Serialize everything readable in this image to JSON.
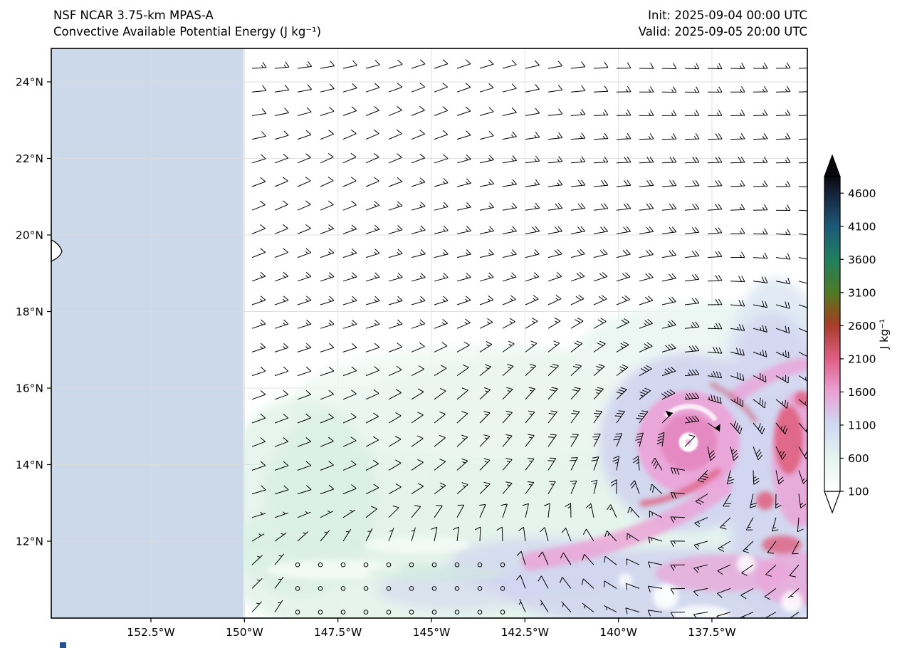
{
  "header": {
    "title_line1": "NSF NCAR 3.75-km MPAS-A",
    "title_line2": "Convective Available Potential Energy (J kg⁻¹)",
    "init_label": "Init: 2025-09-04 00:00 UTC",
    "valid_label": "Valid: 2025-09-05 20:00 UTC"
  },
  "chart_data": {
    "type": "heatmap",
    "title": "Convective Available Potential Energy (J kg⁻¹)",
    "subtitle": "NSF NCAR 3.75-km MPAS-A",
    "init_time": "2025-09-04 00:00 UTC",
    "valid_time": "2025-09-05 20:00 UTC",
    "projection": "lon-lat map of the central/eastern North Pacific",
    "x_axis": {
      "labels": [
        "152.5°W",
        "150°W",
        "147.5°W",
        "145°W",
        "142.5°W",
        "140°W",
        "137.5°W"
      ],
      "lons_w": [
        152.5,
        150,
        147.5,
        145,
        142.5,
        140,
        137.5
      ]
    },
    "y_axis": {
      "labels": [
        "24°N",
        "22°N",
        "20°N",
        "18°N",
        "16°N",
        "14°N",
        "12°N"
      ],
      "lats_n": [
        24,
        22,
        20,
        18,
        16,
        14,
        12
      ]
    },
    "lon_range_deg_w": [
      155.2,
      134.9
    ],
    "lat_range_deg_n": [
      10.0,
      24.9
    ],
    "grid": true,
    "colorbar": {
      "label": "J kg⁻¹",
      "ticks": [
        4600,
        4100,
        3600,
        3100,
        2600,
        2100,
        1600,
        1100,
        600,
        100
      ],
      "extend": "both",
      "value_top": 4850,
      "value_bottom": 100,
      "stops": [
        {
          "value": 4850,
          "color": "#08080c"
        },
        {
          "value": 4600,
          "color": "#15223a"
        },
        {
          "value": 4100,
          "color": "#1d5878"
        },
        {
          "value": 3600,
          "color": "#207f5e"
        },
        {
          "value": 3100,
          "color": "#4e7a26"
        },
        {
          "value": 2850,
          "color": "#7d5a1e"
        },
        {
          "value": 2600,
          "color": "#a93c2a"
        },
        {
          "value": 2100,
          "color": "#df5e85"
        },
        {
          "value": 1600,
          "color": "#eaa2d5"
        },
        {
          "value": 1100,
          "color": "#cedaf2"
        },
        {
          "value": 600,
          "color": "#e5f4f0"
        },
        {
          "value": 100,
          "color": "#ffffff"
        }
      ]
    },
    "overlays": [
      "wind barbs on a regular lon-lat grid (knots)",
      "calm-wind circles near 10.5-11.5°N between ~148.5°W and ~142.5°W",
      "no-data mask (light blue) west of 150°W",
      "Hawaii Big Island coastline fragment at the west edge near 19.5°N"
    ],
    "features": {
      "tropical_cyclone": {
        "description": "tropical cyclone with clear white eye and spiral CAPE bands",
        "center_lon_w": 138.1,
        "center_lat_n": 14.6,
        "band_cape_range_j_per_kg": [
          1100,
          2600
        ]
      },
      "field_summary": {
        "north_of_17N": "CAPE < 100 J/kg (white)",
        "south_half_east_of_150W": "broad 300-900 J/kg (pale green-blue)",
        "around_cyclone_and_east_edge": "1100-2600 J/kg (lavender, pink, red bands)"
      }
    }
  },
  "colors": {
    "background": "#ffffff",
    "no_data_fill": "#ccd9ea",
    "gridline": "#dcdcdc",
    "frame": "#000000",
    "barb": "#000000",
    "logo_fragment": "#23518f"
  }
}
